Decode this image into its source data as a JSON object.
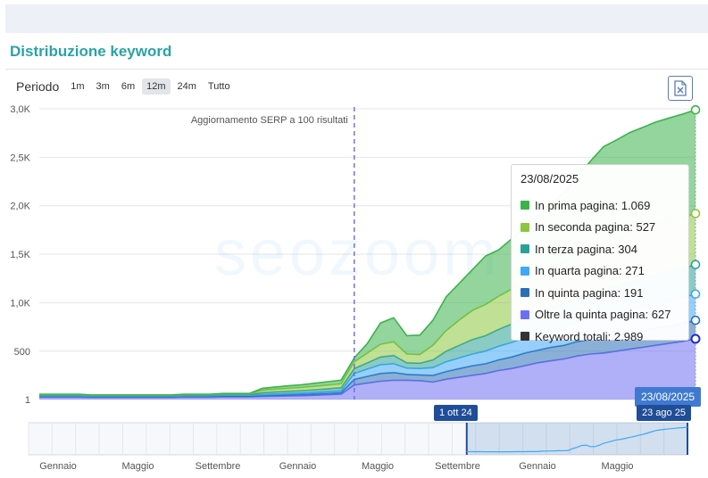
{
  "card": {
    "title": "Distribuzione keyword"
  },
  "period": {
    "label": "Periodo",
    "options": [
      "1m",
      "3m",
      "6m",
      "12m",
      "24m",
      "Tutto"
    ],
    "selected": "12m"
  },
  "export_icon": "excel-export-icon",
  "watermark": "seozoom",
  "colors": {
    "prima": "#3bb34a",
    "seconda": "#8dc63f",
    "terza": "#2aa198",
    "quarta": "#3fa9f5",
    "quinta": "#2a6fb8",
    "oltre": "#6d6ff2",
    "totali": "#333333",
    "accent": "#2aa3a3",
    "date_pill": "#1f4d97"
  },
  "tooltip": {
    "date": "23/08/2025",
    "rows": [
      {
        "key": "prima",
        "text": "In prima pagina: 1.069"
      },
      {
        "key": "seconda",
        "text": "In seconda pagina: 527"
      },
      {
        "key": "terza",
        "text": "In terza pagina: 304"
      },
      {
        "key": "quarta",
        "text": "In quarta pagina: 271"
      },
      {
        "key": "quinta",
        "text": "In quinta pagina: 191"
      },
      {
        "key": "oltre",
        "text": "Oltre la quinta pagina: 627"
      },
      {
        "key": "totali",
        "text": "Keyword totali: 2.989"
      }
    ]
  },
  "hover_date_label": "23/08/2025",
  "navigator": {
    "start_label": "1 ott 24",
    "end_label": "23 ago 25",
    "month_labels": [
      "Gennaio",
      "Maggio",
      "Settembre",
      "Gennaio",
      "Maggio",
      "Settembre",
      "Gennaio",
      "Maggio"
    ],
    "range_fraction": [
      0.665,
      1.0
    ]
  },
  "chart_data": {
    "type": "area",
    "stacked": true,
    "y_ticks": [
      "1",
      "500",
      "1,0K",
      "1,5K",
      "2,0K",
      "2,5K",
      "3,0K"
    ],
    "ylim": [
      1,
      3000
    ],
    "annotation": {
      "text": "Aggiornamento SERP a 100 risultati",
      "x_index": 24
    },
    "x": [
      "2024-09-04",
      "2024-09-11",
      "2024-09-18",
      "2024-09-25",
      "2024-10-02",
      "2024-10-09",
      "2024-10-16",
      "2024-10-23",
      "2024-10-30",
      "2024-11-06",
      "2024-11-13",
      "2024-11-20",
      "2024-11-27",
      "2024-12-04",
      "2024-12-11",
      "2024-12-18",
      "2024-12-25",
      "2025-01-01",
      "2025-01-08",
      "2025-01-15",
      "2025-01-22",
      "2025-01-29",
      "2025-02-05",
      "2025-02-12",
      "2025-02-19",
      "2025-02-26",
      "2025-03-05",
      "2025-03-12",
      "2025-03-19",
      "2025-03-26",
      "2025-04-02",
      "2025-04-09",
      "2025-04-16",
      "2025-04-23",
      "2025-04-30",
      "2025-05-07",
      "2025-05-14",
      "2025-05-21",
      "2025-05-28",
      "2025-06-04",
      "2025-06-11",
      "2025-06-18",
      "2025-06-25",
      "2025-07-02",
      "2025-07-09",
      "2025-07-16",
      "2025-07-23",
      "2025-07-30",
      "2025-08-06",
      "2025-08-13",
      "2025-08-23"
    ],
    "series": [
      {
        "name": "Oltre la quinta pagina",
        "key": "oltre",
        "values": [
          25,
          25,
          25,
          25,
          22,
          22,
          22,
          22,
          22,
          22,
          22,
          25,
          25,
          25,
          28,
          28,
          28,
          32,
          35,
          38,
          40,
          45,
          50,
          55,
          150,
          170,
          190,
          200,
          200,
          195,
          180,
          210,
          230,
          250,
          270,
          300,
          320,
          350,
          380,
          400,
          420,
          450,
          470,
          480,
          500,
          520,
          540,
          560,
          580,
          600,
          627
        ]
      },
      {
        "name": "In quinta pagina",
        "key": "quinta",
        "values": [
          8,
          8,
          8,
          8,
          7,
          7,
          7,
          7,
          7,
          7,
          7,
          8,
          8,
          8,
          9,
          9,
          9,
          10,
          11,
          12,
          13,
          14,
          15,
          17,
          60,
          70,
          80,
          80,
          60,
          60,
          70,
          80,
          90,
          100,
          100,
          110,
          120,
          130,
          130,
          140,
          140,
          150,
          150,
          160,
          160,
          170,
          170,
          180,
          180,
          185,
          191
        ]
      },
      {
        "name": "In quarta pagina",
        "key": "quarta",
        "values": [
          8,
          8,
          8,
          8,
          7,
          7,
          7,
          7,
          7,
          7,
          7,
          8,
          8,
          8,
          9,
          9,
          9,
          10,
          12,
          13,
          14,
          15,
          17,
          18,
          60,
          75,
          90,
          90,
          65,
          65,
          80,
          100,
          110,
          120,
          130,
          140,
          150,
          160,
          170,
          180,
          190,
          200,
          210,
          220,
          230,
          240,
          250,
          255,
          260,
          265,
          271
        ]
      },
      {
        "name": "In terza pagina",
        "key": "terza",
        "values": [
          6,
          6,
          6,
          6,
          5,
          5,
          5,
          5,
          5,
          5,
          5,
          6,
          6,
          6,
          7,
          7,
          7,
          20,
          22,
          24,
          26,
          28,
          30,
          33,
          50,
          65,
          80,
          85,
          55,
          55,
          80,
          110,
          130,
          150,
          160,
          175,
          190,
          205,
          220,
          230,
          240,
          250,
          260,
          270,
          280,
          285,
          290,
          295,
          300,
          302,
          304
        ]
      },
      {
        "name": "In seconda pagina",
        "key": "seconda",
        "values": [
          6,
          6,
          6,
          6,
          5,
          5,
          5,
          5,
          5,
          5,
          5,
          6,
          6,
          6,
          7,
          7,
          7,
          25,
          28,
          30,
          32,
          35,
          38,
          40,
          70,
          100,
          130,
          140,
          90,
          90,
          150,
          210,
          260,
          300,
          320,
          340,
          360,
          380,
          400,
          420,
          430,
          450,
          470,
          480,
          490,
          500,
          510,
          515,
          520,
          525,
          527
        ]
      },
      {
        "name": "In prima pagina",
        "key": "prima",
        "values": [
          3,
          3,
          3,
          3,
          2,
          2,
          2,
          2,
          2,
          2,
          2,
          3,
          3,
          3,
          4,
          4,
          4,
          20,
          23,
          26,
          29,
          32,
          35,
          38,
          40,
          100,
          220,
          250,
          190,
          200,
          260,
          350,
          380,
          420,
          500,
          480,
          520,
          560,
          600,
          650,
          720,
          800,
          900,
          1000,
          1020,
          1040,
          1050,
          1060,
          1065,
          1068,
          1069
        ]
      }
    ],
    "totals_final": 2989
  }
}
